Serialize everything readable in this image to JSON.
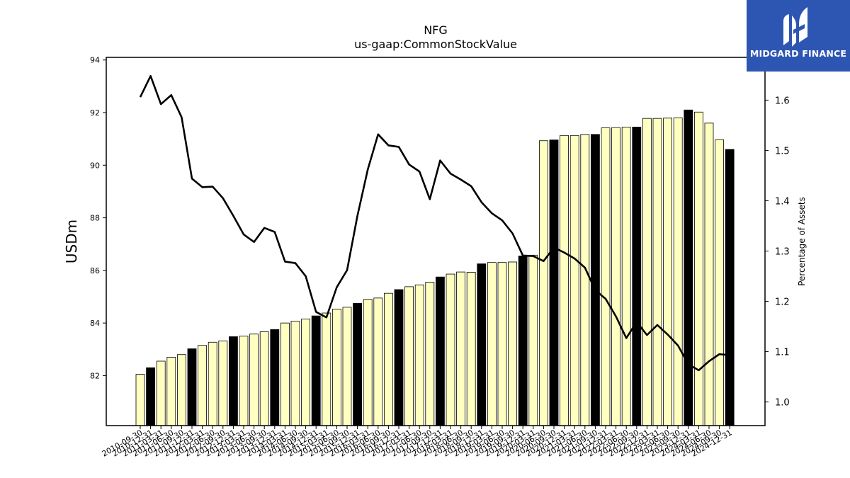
{
  "chart_data": {
    "type": "bar",
    "title": "NFG",
    "subtitle": "us-gaap:CommonStockValue",
    "ylabel": "USDm",
    "y2label": "Percentage of Assets",
    "ylim": [
      80.1,
      94.1
    ],
    "y2lim": [
      0.953,
      1.685
    ],
    "yticks": [
      82,
      84,
      86,
      88,
      90,
      92,
      94
    ],
    "y2ticks": [
      "1.0",
      "1.1",
      "1.2",
      "1.3",
      "1.4",
      "1.5",
      "1.6"
    ],
    "categories": [
      "2010-09-30",
      "2010-12-31",
      "2011-03-31",
      "2011-06-30",
      "2011-09-30",
      "2011-12-31",
      "2012-03-31",
      "2012-06-30",
      "2012-09-30",
      "2012-12-31",
      "2013-03-31",
      "2013-06-30",
      "2013-09-30",
      "2013-12-31",
      "2014-03-31",
      "2014-06-30",
      "2014-09-30",
      "2014-12-31",
      "2015-03-31",
      "2015-06-30",
      "2015-09-30",
      "2015-12-31",
      "2016-03-31",
      "2016-06-30",
      "2016-09-30",
      "2016-12-31",
      "2017-03-31",
      "2017-06-30",
      "2017-09-30",
      "2017-12-31",
      "2018-03-31",
      "2018-06-30",
      "2018-09-30",
      "2018-12-31",
      "2019-03-31",
      "2019-06-30",
      "2019-09-30",
      "2019-12-31",
      "2020-03-31",
      "2020-06-30",
      "2020-09-30",
      "2020-12-31",
      "2021-03-31",
      "2021-06-30",
      "2021-09-30",
      "2021-12-31",
      "2022-03-31",
      "2022-06-30",
      "2022-09-30",
      "2022-12-31",
      "2023-03-31",
      "2023-06-30",
      "2023-09-30",
      "2023-12-31",
      "2024-03-31",
      "2024-06-30",
      "2024-09-30",
      "2024-12-31"
    ],
    "series": [
      {
        "type": "bar",
        "values": [
          82.05,
          82.3,
          82.55,
          82.7,
          82.8,
          83.02,
          83.15,
          83.27,
          83.32,
          83.48,
          83.5,
          83.58,
          83.67,
          83.75,
          84.0,
          84.07,
          84.15,
          84.27,
          84.38,
          84.53,
          84.6,
          84.75,
          84.9,
          84.95,
          85.13,
          85.27,
          85.38,
          85.45,
          85.55,
          85.75,
          85.86,
          85.94,
          85.93,
          86.25,
          86.3,
          86.3,
          86.32,
          86.55,
          86.58,
          90.93,
          90.96,
          91.13,
          91.13,
          91.17,
          91.17,
          91.42,
          91.43,
          91.45,
          91.45,
          91.78,
          91.78,
          91.79,
          91.8,
          92.1,
          92.02,
          91.6,
          90.97,
          90.6
        ],
        "highlight_color": "#000000",
        "highlight_indices": [
          1,
          5,
          9,
          13,
          17,
          21,
          25,
          29,
          33,
          37,
          40,
          44,
          48,
          53,
          57
        ],
        "color": "#ffffc0"
      },
      {
        "type": "line",
        "axis": "right",
        "color": "#000000",
        "values": [
          1.606,
          1.648,
          1.592,
          1.61,
          1.566,
          1.444,
          1.427,
          1.428,
          1.405,
          1.37,
          1.333,
          1.318,
          1.346,
          1.338,
          1.279,
          1.276,
          1.25,
          1.179,
          1.168,
          1.228,
          1.262,
          1.37,
          1.462,
          1.532,
          1.51,
          1.507,
          1.472,
          1.458,
          1.403,
          1.48,
          1.454,
          1.442,
          1.429,
          1.397,
          1.375,
          1.361,
          1.335,
          1.291,
          1.29,
          1.28,
          1.307,
          1.297,
          1.285,
          1.267,
          1.222,
          1.205,
          1.17,
          1.127,
          1.159,
          1.133,
          1.153,
          1.134,
          1.112,
          1.075,
          1.063,
          1.081,
          1.095,
          1.093
        ]
      }
    ],
    "grid": false,
    "legend": "none"
  },
  "logo": {
    "text": "MIDGARD FINANCE",
    "icon": "midgard-logo-icon",
    "background": "#2d56b3"
  }
}
